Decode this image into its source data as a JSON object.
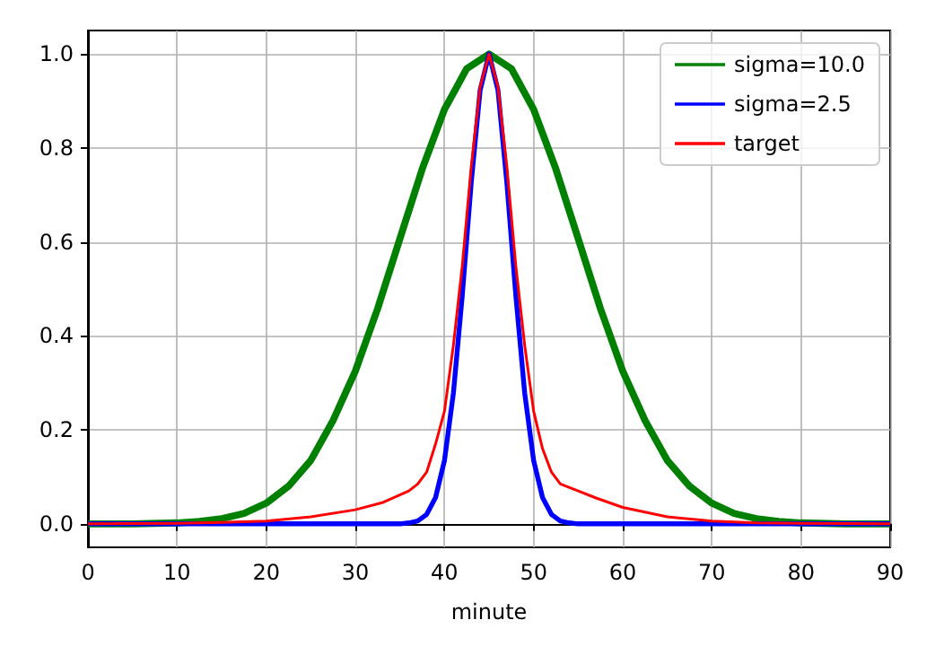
{
  "chart_data": {
    "type": "line",
    "xlabel": "minute",
    "xlim": [
      0,
      90
    ],
    "xticks": [
      0,
      10,
      20,
      30,
      40,
      50,
      60,
      70,
      80,
      90
    ],
    "ylim": [
      -0.05,
      1.05
    ],
    "yticks": [
      {
        "value": 0,
        "label": "0.0"
      },
      {
        "value": 0.2,
        "label": "0.2"
      },
      {
        "value": 0.4,
        "label": "0.4"
      },
      {
        "value": 0.6,
        "label": "0.6"
      },
      {
        "value": 0.8,
        "label": "0.8"
      },
      {
        "value": 1,
        "label": "1.0"
      }
    ],
    "grid": true,
    "legend": "top right",
    "marker": "none",
    "line_style": "solid",
    "series": [
      {
        "name": "sigma=10.0",
        "color": "#008000",
        "x": [
          0,
          5,
          10,
          12.5,
          15,
          17.5,
          20,
          22.5,
          25,
          27.5,
          30,
          32.5,
          35,
          37.5,
          40,
          42.5,
          45,
          47.5,
          50,
          52.5,
          55,
          57.5,
          60,
          62.5,
          65,
          67.5,
          70,
          72.5,
          75,
          77.5,
          80,
          85,
          90
        ],
        "values": [
          0,
          0,
          0.002,
          0.005,
          0.011,
          0.022,
          0.044,
          0.08,
          0.135,
          0.22,
          0.325,
          0.458,
          0.607,
          0.755,
          0.882,
          0.969,
          1,
          0.969,
          0.882,
          0.755,
          0.607,
          0.458,
          0.325,
          0.22,
          0.135,
          0.08,
          0.044,
          0.022,
          0.011,
          0.005,
          0.002,
          0,
          0
        ]
      },
      {
        "name": "sigma=2.5",
        "color": "#0000ff",
        "x": [
          0,
          30,
          35,
          36,
          37,
          38,
          39,
          40,
          41,
          42,
          43,
          44,
          45,
          46,
          47,
          48,
          49,
          50,
          51,
          52,
          53,
          54,
          55,
          60,
          90
        ],
        "values": [
          0,
          0,
          0,
          0.002,
          0.006,
          0.02,
          0.056,
          0.135,
          0.278,
          0.487,
          0.726,
          0.923,
          1,
          0.923,
          0.726,
          0.487,
          0.278,
          0.135,
          0.056,
          0.02,
          0.006,
          0.002,
          0,
          0,
          0
        ]
      },
      {
        "name": "target",
        "color": "#ff0000",
        "x": [
          0,
          10,
          15,
          20,
          25,
          30,
          33,
          36,
          37,
          38,
          39,
          40,
          41,
          42,
          43,
          44,
          45,
          46,
          47,
          48,
          49,
          50,
          51,
          52,
          53,
          55,
          57,
          60,
          65,
          70,
          75,
          80,
          90
        ],
        "values": [
          0,
          0.001,
          0.003,
          0.006,
          0.015,
          0.03,
          0.045,
          0.07,
          0.085,
          0.11,
          0.17,
          0.24,
          0.38,
          0.55,
          0.76,
          0.93,
          1,
          0.93,
          0.76,
          0.55,
          0.38,
          0.24,
          0.16,
          0.11,
          0.085,
          0.07,
          0.055,
          0.035,
          0.015,
          0.006,
          0.002,
          0.001,
          0
        ]
      }
    ]
  }
}
